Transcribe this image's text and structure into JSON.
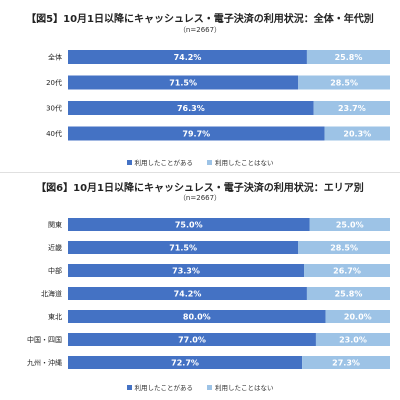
{
  "colors": {
    "used": "#4472c4",
    "not_used": "#9dc3e6"
  },
  "chart_data": [
    {
      "type": "bar",
      "orientation": "horizontal-stacked-100",
      "title": "【図5】10月1日以降にキャッシュレス・電子決済の利用状況：全体・年代別",
      "note": "（n=2667）",
      "categories": [
        "全体",
        "20代",
        "30代",
        "40代"
      ],
      "series": [
        {
          "name": "利用したことがある",
          "values": [
            74.2,
            71.5,
            76.3,
            79.7
          ]
        },
        {
          "name": "利用したことはない",
          "values": [
            25.8,
            28.5,
            23.7,
            20.3
          ]
        }
      ],
      "value_labels": {
        "used": [
          "74.2%",
          "71.5%",
          "76.3%",
          "79.7%"
        ],
        "not_used": [
          "25.8%",
          "28.5%",
          "23.7%",
          "20.3%"
        ]
      },
      "xlim": [
        0,
        100
      ],
      "legend": [
        "利用したことがある",
        "利用したことはない"
      ],
      "legend_position": "bottom"
    },
    {
      "type": "bar",
      "orientation": "horizontal-stacked-100",
      "title": "【図6】10月1日以降にキャッシュレス・電子決済の利用状況：エリア別",
      "note": "（n=2667）",
      "categories": [
        "関東",
        "近畿",
        "中部",
        "北海道",
        "東北",
        "中国・四国",
        "九州・沖縄"
      ],
      "series": [
        {
          "name": "利用したことがある",
          "values": [
            75.0,
            71.5,
            73.3,
            74.2,
            80.0,
            77.0,
            72.7
          ]
        },
        {
          "name": "利用したことはない",
          "values": [
            25.0,
            28.5,
            26.7,
            25.8,
            20.0,
            23.0,
            27.3
          ]
        }
      ],
      "value_labels": {
        "used": [
          "75.0%",
          "71.5%",
          "73.3%",
          "74.2%",
          "80.0%",
          "77.0%",
          "72.7%"
        ],
        "not_used": [
          "25.0%",
          "28.5%",
          "26.7%",
          "25.8%",
          "20.0%",
          "23.0%",
          "27.3%"
        ]
      },
      "xlim": [
        0,
        100
      ],
      "legend": [
        "利用したことがある",
        "利用したことはない"
      ],
      "legend_position": "bottom"
    }
  ]
}
